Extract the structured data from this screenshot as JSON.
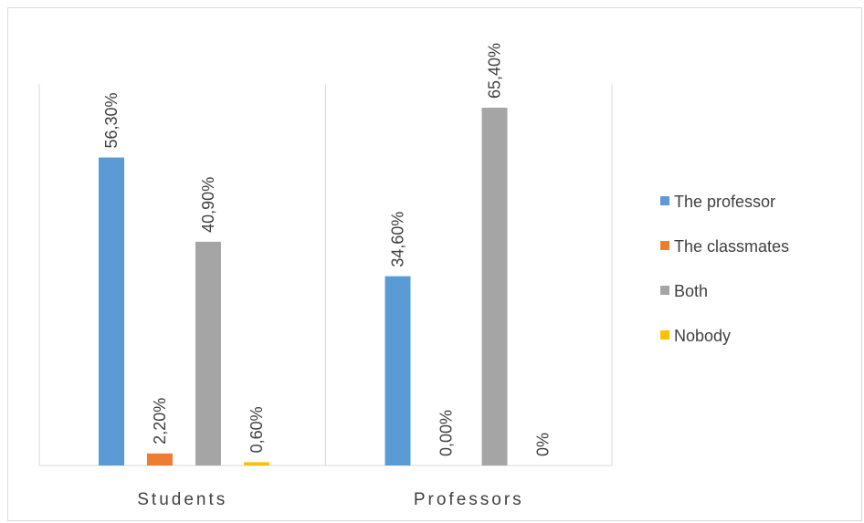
{
  "chart_data": {
    "type": "bar",
    "categories": [
      "Students",
      "Professors"
    ],
    "series": [
      {
        "name": "The professor",
        "color": "#5b9bd5",
        "values": [
          56.3,
          34.6
        ],
        "labels": [
          "56,30%",
          "34,60%"
        ]
      },
      {
        "name": "The classmates",
        "color": "#ed7d31",
        "values": [
          2.2,
          0.0
        ],
        "labels": [
          "2,20%",
          "0,00%"
        ]
      },
      {
        "name": "Both",
        "color": "#a5a5a5",
        "values": [
          40.9,
          65.4
        ],
        "labels": [
          "40,90%",
          "65,40%"
        ]
      },
      {
        "name": "Nobody",
        "color": "#ffc000",
        "values": [
          0.6,
          0.0
        ],
        "labels": [
          "0,60%",
          "0%"
        ]
      }
    ],
    "ylim": [
      0,
      70
    ],
    "legend_position": "right",
    "grid": false
  }
}
